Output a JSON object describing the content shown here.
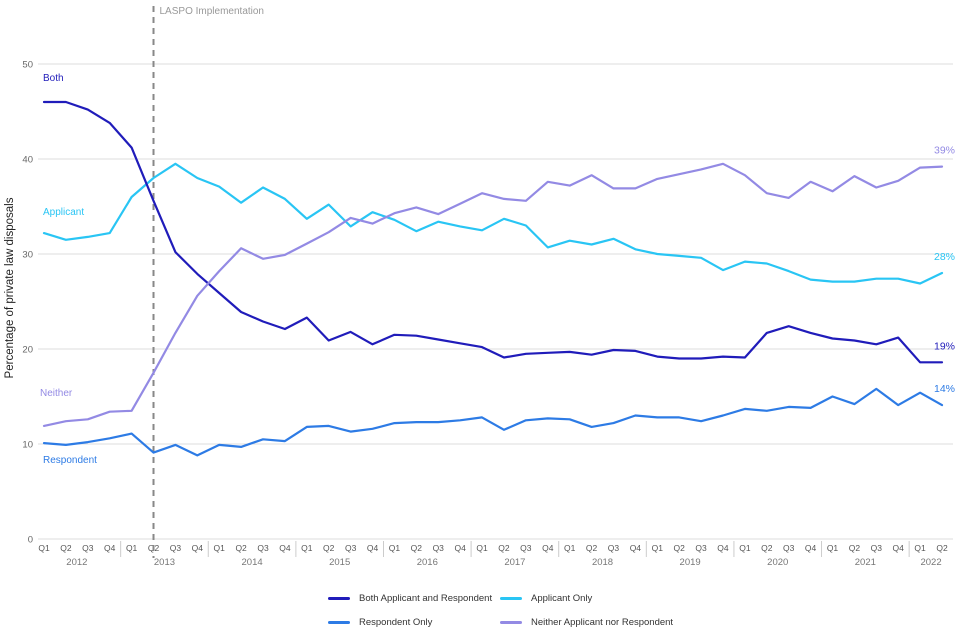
{
  "y_axis": {
    "ticks": [
      0,
      10,
      20,
      30,
      40,
      50
    ],
    "max": 50
  },
  "annotation": {
    "label": "LASPO Implementation",
    "x_index": 5
  },
  "chart_data": {
    "type": "line",
    "title": "",
    "xlabel": "",
    "ylabel": "Percentage of private law disposals",
    "ylim": [
      0,
      50
    ],
    "grid": true,
    "legend_position": "bottom",
    "quarters": [
      "Q1",
      "Q2",
      "Q3",
      "Q4",
      "Q1",
      "Q2",
      "Q3",
      "Q4",
      "Q1",
      "Q2",
      "Q3",
      "Q4",
      "Q1",
      "Q2",
      "Q3",
      "Q4",
      "Q1",
      "Q2",
      "Q3",
      "Q4",
      "Q1",
      "Q2",
      "Q3",
      "Q4",
      "Q1",
      "Q2",
      "Q3",
      "Q4",
      "Q1",
      "Q2",
      "Q3",
      "Q4",
      "Q1",
      "Q2",
      "Q3",
      "Q4",
      "Q1",
      "Q2",
      "Q3",
      "Q4",
      "Q1",
      "Q2"
    ],
    "years": [
      {
        "label": "2012",
        "count": 4
      },
      {
        "label": "2013",
        "count": 4
      },
      {
        "label": "2014",
        "count": 4
      },
      {
        "label": "2015",
        "count": 4
      },
      {
        "label": "2016",
        "count": 4
      },
      {
        "label": "2017",
        "count": 4
      },
      {
        "label": "2018",
        "count": 4
      },
      {
        "label": "2019",
        "count": 4
      },
      {
        "label": "2020",
        "count": 4
      },
      {
        "label": "2021",
        "count": 4
      },
      {
        "label": "2022",
        "count": 2
      }
    ],
    "series": [
      {
        "name": "Both Applicant and Respondent",
        "short_label": "Both",
        "color": "#201cba",
        "end_label": "19%",
        "values": [
          46.0,
          46.0,
          45.2,
          43.8,
          41.2,
          35.6,
          30.2,
          27.9,
          25.9,
          23.9,
          22.9,
          22.1,
          23.3,
          20.9,
          21.8,
          20.5,
          21.5,
          21.4,
          21.0,
          20.6,
          20.2,
          19.1,
          19.5,
          19.6,
          19.7,
          19.4,
          19.9,
          19.8,
          19.2,
          19.0,
          19.0,
          19.2,
          19.1,
          21.7,
          22.4,
          21.7,
          21.1,
          20.9,
          20.5,
          21.2,
          18.6,
          18.6
        ]
      },
      {
        "name": "Applicant Only",
        "short_label": "Applicant",
        "color": "#29c5f4",
        "end_label": "28%",
        "values": [
          32.2,
          31.5,
          31.8,
          32.2,
          36.0,
          38.0,
          39.5,
          38.0,
          37.1,
          35.4,
          37.0,
          35.8,
          33.7,
          35.2,
          32.9,
          34.4,
          33.6,
          32.4,
          33.4,
          32.9,
          32.5,
          33.7,
          33.0,
          30.7,
          31.4,
          31.0,
          31.6,
          30.5,
          30.0,
          29.8,
          29.6,
          28.3,
          29.2,
          29.0,
          28.2,
          27.3,
          27.1,
          27.1,
          27.4,
          27.4,
          26.9,
          28.0
        ]
      },
      {
        "name": "Respondent Only",
        "short_label": "Respondent",
        "color": "#2d7be5",
        "end_label": "14%",
        "values": [
          10.1,
          9.9,
          10.2,
          10.6,
          11.1,
          9.1,
          9.9,
          8.8,
          9.9,
          9.7,
          10.5,
          10.3,
          11.8,
          11.9,
          11.3,
          11.6,
          12.2,
          12.3,
          12.3,
          12.5,
          12.8,
          11.5,
          12.5,
          12.7,
          12.6,
          11.8,
          12.2,
          13.0,
          12.8,
          12.8,
          12.4,
          13.0,
          13.7,
          13.5,
          13.9,
          13.8,
          15.0,
          14.2,
          15.8,
          14.1,
          15.4,
          14.1
        ]
      },
      {
        "name": "Neither Applicant nor Respondent",
        "short_label": "Neither",
        "color": "#938ae4",
        "end_label": "39%",
        "values": [
          11.9,
          12.4,
          12.6,
          13.4,
          13.5,
          17.5,
          21.7,
          25.6,
          28.2,
          30.6,
          29.5,
          29.9,
          31.1,
          32.3,
          33.8,
          33.2,
          34.3,
          34.9,
          34.2,
          35.3,
          36.4,
          35.8,
          35.6,
          37.6,
          37.2,
          38.3,
          36.9,
          36.9,
          37.9,
          38.4,
          38.9,
          39.5,
          38.3,
          36.4,
          35.9,
          37.6,
          36.6,
          38.2,
          37.0,
          37.7,
          39.1,
          39.2
        ]
      }
    ],
    "colors": {
      "grid": "#dedede",
      "tick_text": "#666666",
      "axis_text": "#555555",
      "year_text": "#777777",
      "annotation_line": "#888888",
      "annotation_text": "#999999"
    }
  },
  "legend": {
    "items": [
      {
        "label": "Both Applicant and Respondent",
        "series": 0
      },
      {
        "label": "Applicant Only",
        "series": 1
      },
      {
        "label": "Respondent Only",
        "series": 2
      },
      {
        "label": "Neither Applicant nor Respondent",
        "series": 3
      }
    ]
  }
}
